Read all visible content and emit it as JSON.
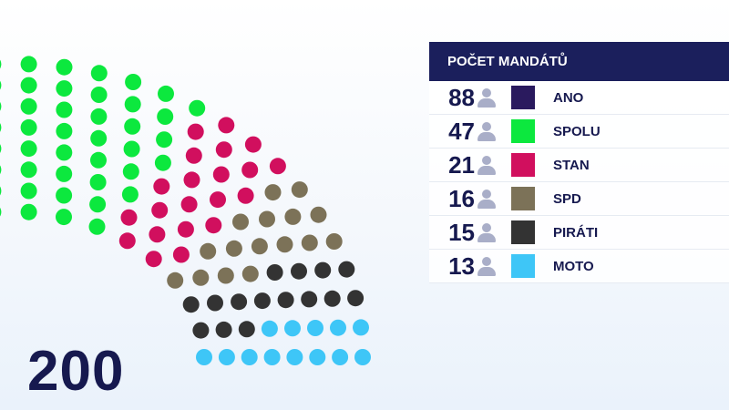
{
  "chart_data": {
    "type": "parliament",
    "total_seats": 200,
    "total_label": "200",
    "legend_title": "POČET MANDÁTŮ",
    "parties": [
      {
        "name": "ANO",
        "seats": 88,
        "color": "#2a1a5e"
      },
      {
        "name": "SPOLU",
        "seats": 47,
        "color": "#0ce83e"
      },
      {
        "name": "STAN",
        "seats": 21,
        "color": "#d10f5e"
      },
      {
        "name": "SPD",
        "seats": 16,
        "color": "#7c7258"
      },
      {
        "name": "PIRÁTI",
        "seats": 15,
        "color": "#333333"
      },
      {
        "name": "MOTO",
        "seats": 13,
        "color": "#3ec6f7"
      }
    ],
    "icons": {
      "seat_count": "person-icon"
    }
  }
}
